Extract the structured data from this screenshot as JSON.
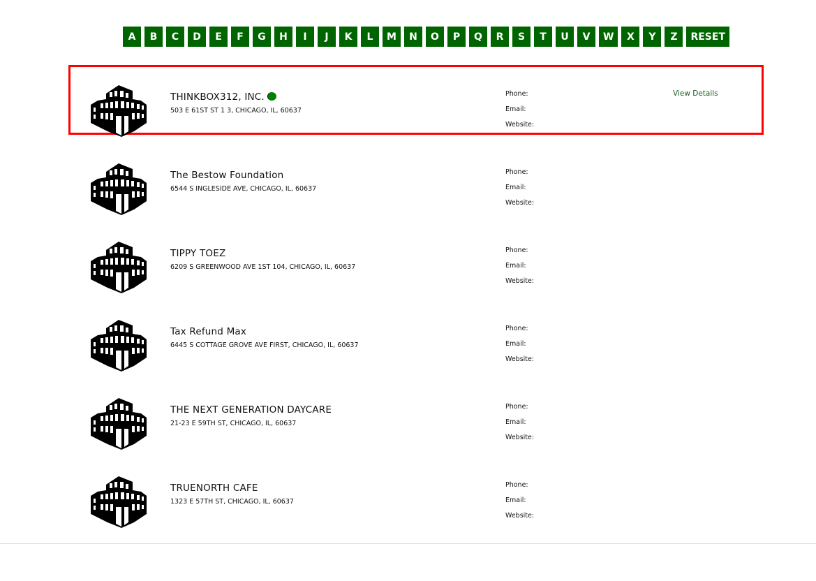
{
  "alphabet": [
    "A",
    "B",
    "C",
    "D",
    "E",
    "F",
    "G",
    "H",
    "I",
    "J",
    "K",
    "L",
    "M",
    "N",
    "O",
    "P",
    "Q",
    "R",
    "S",
    "T",
    "U",
    "V",
    "W",
    "X",
    "Y",
    "Z"
  ],
  "reset_label": "RESET",
  "accent_color": "#006400",
  "labels": {
    "phone": "Phone:",
    "email": "Email:",
    "website": "Website:",
    "view_details": "View Details"
  },
  "listings": [
    {
      "name": "THINKBOX312, INC.",
      "address": "503 E 61ST ST 1 3, CHICAGO, IL, 60637",
      "icon": "building-icon",
      "highlighted": true
    },
    {
      "name": "The Bestow Foundation",
      "address": "6544 S INGLESIDE AVE, CHICAGO, IL, 60637",
      "icon": "building-icon"
    },
    {
      "name": "TIPPY TOEZ",
      "address": "6209 S GREENWOOD AVE 1ST 104, CHICAGO, IL, 60637",
      "icon": "building-icon"
    },
    {
      "name": "Tax Refund Max",
      "address": "6445 S COTTAGE GROVE AVE FIRST, CHICAGO, IL, 60637",
      "icon": "building-icon"
    },
    {
      "name": "THE NEXT GENERATION DAYCARE",
      "address": "21-23 E 59TH ST, CHICAGO, IL, 60637",
      "icon": "building-icon"
    },
    {
      "name": "TRUENORTH CAFE",
      "address": "1323 E 57TH ST, CHICAGO, IL, 60637",
      "icon": "building-icon"
    }
  ]
}
